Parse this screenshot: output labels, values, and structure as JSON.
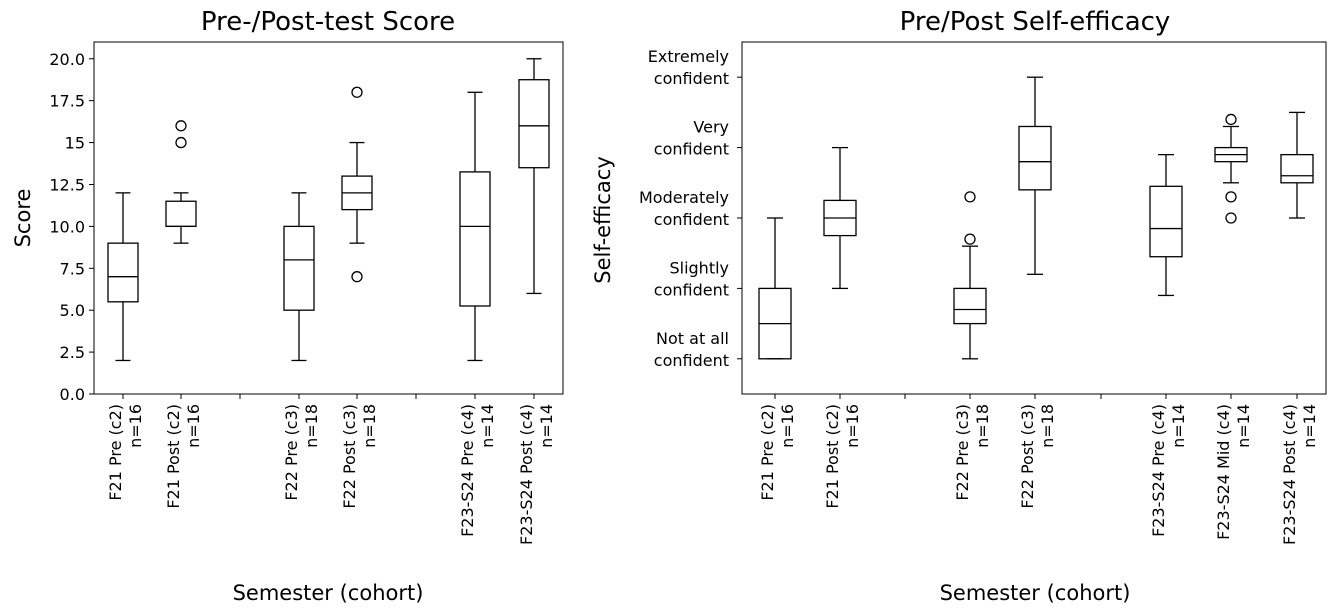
{
  "chart_data": [
    {
      "type": "box",
      "title": "Pre-/Post-test Score",
      "xlabel": "Semester (cohort)",
      "ylabel": "Score",
      "ylim": [
        0,
        21
      ],
      "yticks": [
        "0.0",
        "2.5",
        "5.0",
        "7.5",
        "10.0",
        "12.5",
        "15",
        "17.5",
        "20.0"
      ],
      "grid": false,
      "boxes": [
        {
          "label_line1": "F21 Pre (c2)",
          "label_line2": "n=16",
          "whisker_low": 2,
          "q1": 5.5,
          "median": 7,
          "q3": 9,
          "whisker_high": 12,
          "outliers": []
        },
        {
          "label_line1": "F21 Post (c2)",
          "label_line2": "n=16",
          "whisker_low": 9,
          "q1": 10,
          "median": 10,
          "q3": 11.5,
          "whisker_high": 12,
          "outliers": [
            15,
            16
          ]
        },
        {
          "label_line1": "F22 Pre (c3)",
          "label_line2": "n=18",
          "whisker_low": 2,
          "q1": 5,
          "median": 8,
          "q3": 10,
          "whisker_high": 12,
          "outliers": []
        },
        {
          "label_line1": "F22 Post (c3)",
          "label_line2": "n=18",
          "whisker_low": 9,
          "q1": 11,
          "median": 12,
          "q3": 13,
          "whisker_high": 15,
          "outliers": [
            7,
            18
          ]
        },
        {
          "label_line1": "F23-S24 Pre (c4)",
          "label_line2": "n=14",
          "whisker_low": 2,
          "q1": 5.25,
          "median": 10,
          "q3": 13.25,
          "whisker_high": 18,
          "outliers": []
        },
        {
          "label_line1": "F23-S24 Post (c4)",
          "label_line2": "n=14",
          "whisker_low": 6,
          "q1": 13.5,
          "median": 16,
          "q3": 18.75,
          "whisker_high": 20,
          "outliers": []
        }
      ]
    },
    {
      "type": "box",
      "title": "Pre/Post Self-efficacy",
      "xlabel": "Semester (cohort)",
      "ylabel": "Self-efficacy",
      "ylim": [
        0.5,
        5.5
      ],
      "ytick_labels": [
        {
          "line1": "Not at all",
          "line2": "confident"
        },
        {
          "line1": "Slightly",
          "line2": "confident"
        },
        {
          "line1": "Moderately",
          "line2": "confident"
        },
        {
          "line1": "Very",
          "line2": "confident"
        },
        {
          "line1": "Extremely",
          "line2": "confident"
        }
      ],
      "grid": false,
      "boxes": [
        {
          "label_line1": "F21 Pre (c2)",
          "label_line2": "n=16",
          "whisker_low": 1.0,
          "q1": 1.0,
          "median": 1.5,
          "q3": 2.0,
          "whisker_high": 3.0,
          "outliers": []
        },
        {
          "label_line1": "F21 Post (c2)",
          "label_line2": "n=16",
          "whisker_low": 2.0,
          "q1": 2.75,
          "median": 3.0,
          "q3": 3.25,
          "whisker_high": 4.0,
          "outliers": []
        },
        {
          "label_line1": "F22 Pre (c3)",
          "label_line2": "n=18",
          "whisker_low": 1.0,
          "q1": 1.5,
          "median": 1.7,
          "q3": 2.0,
          "whisker_high": 2.6,
          "outliers": [
            2.7,
            3.3
          ]
        },
        {
          "label_line1": "F22 Post (c3)",
          "label_line2": "n=18",
          "whisker_low": 2.2,
          "q1": 3.4,
          "median": 3.8,
          "q3": 4.3,
          "whisker_high": 5.0,
          "outliers": []
        },
        {
          "label_line1": "F23-S24 Pre (c4)",
          "label_line2": "n=14",
          "whisker_low": 1.9,
          "q1": 2.45,
          "median": 2.85,
          "q3": 3.45,
          "whisker_high": 3.9,
          "outliers": []
        },
        {
          "label_line1": "F23-S24 Mid (c4)",
          "label_line2": "n=14",
          "whisker_low": 3.5,
          "q1": 3.8,
          "median": 3.9,
          "q3": 4.0,
          "whisker_high": 4.3,
          "outliers": [
            3.0,
            3.3,
            4.4
          ]
        },
        {
          "label_line1": "F23-S24 Post (c4)",
          "label_line2": "n=14",
          "whisker_low": 3.0,
          "q1": 3.5,
          "median": 3.6,
          "q3": 3.9,
          "whisker_high": 4.5,
          "outliers": []
        }
      ]
    }
  ]
}
